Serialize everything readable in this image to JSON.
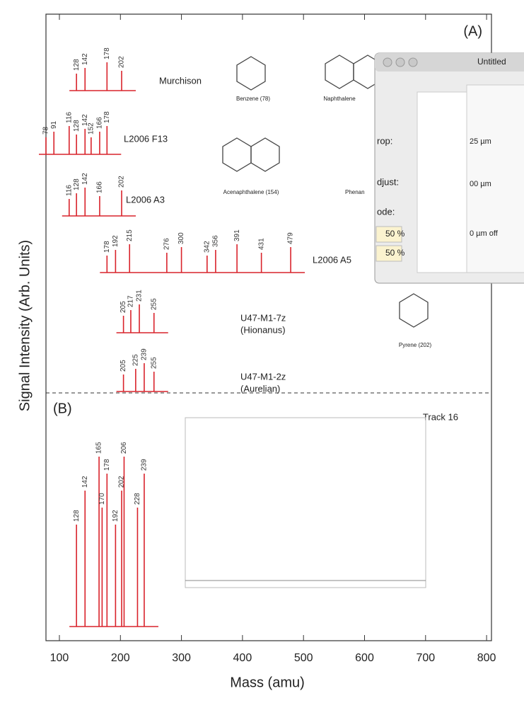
{
  "chart_data": {
    "type": "stick-spectra",
    "x_label": "Mass (amu)",
    "y_label": "Signal Intensity (Arb. Units)",
    "xlim": [
      78,
      808
    ],
    "xticks": [
      100,
      200,
      300,
      400,
      500,
      600,
      700,
      800
    ],
    "color": "#d9232b",
    "panel_a_label": "(A)",
    "panels": [
      {
        "name": "Murchison",
        "peaks": [
          128,
          142,
          178,
          202
        ]
      },
      {
        "name": "L2006 F13",
        "peaks": [
          78,
          91,
          116,
          128,
          142,
          152,
          166,
          178
        ]
      },
      {
        "name": "L2006 A3",
        "peaks": [
          116,
          128,
          142,
          166,
          202
        ]
      },
      {
        "name": "L2006 A5",
        "peaks": [
          178,
          192,
          215,
          276,
          300,
          342,
          356,
          391,
          431,
          479
        ]
      },
      {
        "name": "U47-M1-7z",
        "subname": "(Hionanus)",
        "peaks": [
          205,
          217,
          231,
          255
        ]
      },
      {
        "name": "U47-M1-2z",
        "subname": "(Aurelian)",
        "peaks": [
          205,
          225,
          239,
          255
        ]
      }
    ],
    "panel_b": {
      "label": "(B)",
      "annotation": "Track 16",
      "peaks": [
        128,
        142,
        165,
        170,
        178,
        192,
        202,
        206,
        228,
        239
      ]
    },
    "molecules": [
      "Benzene (78)",
      "Naphthalene",
      "Acenaphthalene (154)",
      "Phenan",
      "Pyrene (202)"
    ],
    "window": {
      "title": "Untitled",
      "fields": [
        "rop:",
        "djust:",
        "ode:"
      ],
      "inputs": [
        "50 %",
        "50 %"
      ],
      "offsets": [
        "25 µm",
        "00 µm",
        "0 µm off"
      ]
    }
  }
}
